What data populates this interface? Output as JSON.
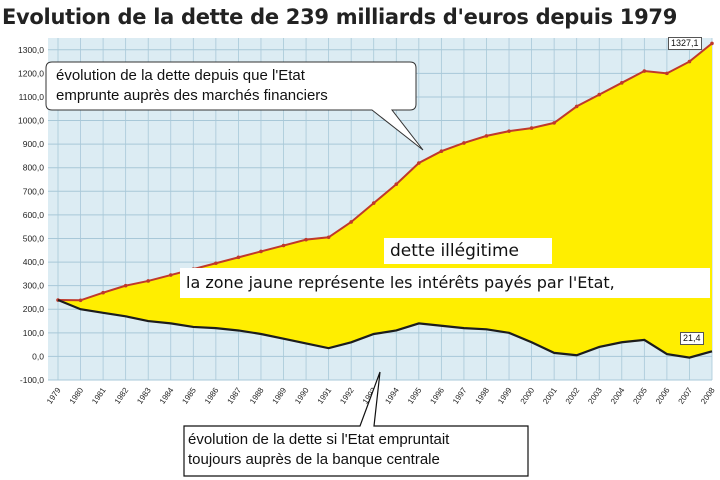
{
  "title": "Evolution de la dette de 239 milliards d'euros depuis 1979",
  "callout_top": {
    "line1": "évolution de la dette depuis que l'Etat",
    "line2": "emprunte auprès des marchés financiers"
  },
  "callout_bottom": {
    "line1": "évolution de la dette si l'Etat empruntait",
    "line2": "toujours auprès de la banque centrale"
  },
  "annotation": {
    "title": "dette illégitime",
    "body": "la zone jaune représente les intérêts payés par l'Etat,"
  },
  "end_labels": {
    "market": "1327,1",
    "central": "21,4"
  },
  "colors": {
    "area_fill": "#ffee00",
    "market_line": "#c0392b",
    "central_line": "#1c1c1c",
    "grid": "#a8c8d8",
    "plot_bg": "#dcecf3"
  },
  "chart_data": {
    "type": "area",
    "title": "Evolution de la dette de 239 milliards d'euros depuis 1979",
    "xlabel": "",
    "ylabel": "",
    "x": [
      "1979",
      "1980",
      "1981",
      "1982",
      "1983",
      "1984",
      "1985",
      "1986",
      "1987",
      "1988",
      "1989",
      "1990",
      "1991",
      "1992",
      "1993",
      "1994",
      "1995",
      "1996",
      "1997",
      "1998",
      "1999",
      "2000",
      "2001",
      "2002",
      "2003",
      "2004",
      "2005",
      "2006",
      "2007",
      "2008"
    ],
    "series": [
      {
        "name": "évolution de la dette depuis que l'Etat emprunte auprès des marchés financiers",
        "values": [
          239,
          238,
          270,
          300,
          320,
          345,
          370,
          395,
          420,
          445,
          470,
          495,
          505,
          570,
          650,
          730,
          820,
          870,
          905,
          935,
          955,
          968,
          990,
          1060,
          1110,
          1160,
          1210,
          1200,
          1250,
          1327.1
        ]
      },
      {
        "name": "évolution de la dette si l'Etat empruntait toujours auprès de la banque centrale",
        "values": [
          239,
          200,
          185,
          170,
          150,
          140,
          125,
          120,
          110,
          95,
          75,
          55,
          35,
          60,
          95,
          110,
          140,
          130,
          120,
          115,
          100,
          60,
          15,
          5,
          40,
          60,
          70,
          10,
          -5,
          21.4
        ]
      }
    ],
    "ylim": [
      -100,
      1350
    ],
    "yticks": [
      "-100,0",
      "0,0",
      "100,0",
      "200,0",
      "300,0",
      "400,0",
      "500,0",
      "600,0",
      "700,0",
      "800,0",
      "900,0",
      "1000,0",
      "1100,0",
      "1200,0",
      "1300,0"
    ],
    "grid": true,
    "legend": "none"
  }
}
